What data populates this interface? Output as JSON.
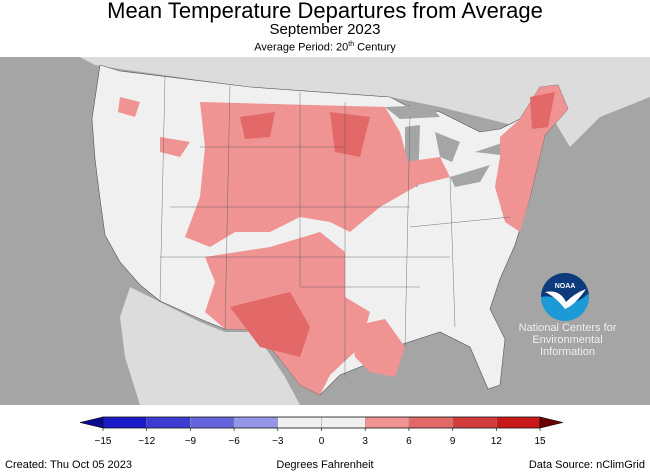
{
  "header": {
    "title": "Mean Temperature Departures from Average",
    "subtitle": "September 2023",
    "period_prefix": "Average Period: 20",
    "period_sup": "th",
    "period_suffix": " Century"
  },
  "legend": {
    "unit_label": "Degrees Fahrenheit",
    "ticks": [
      "−15",
      "−12",
      "−9",
      "−6",
      "−3",
      "0",
      "3",
      "6",
      "9",
      "12",
      "15"
    ],
    "colors": [
      "#1a1ac8",
      "#3c3cd2",
      "#6464dc",
      "#9696e8",
      "#f0f0f0",
      "#f0f0f0",
      "#ef9393",
      "#e36868",
      "#d43d3d",
      "#c81818"
    ],
    "under_color": "#0a0a90",
    "over_color": "#6a0000"
  },
  "footer": {
    "created": "Created: Thu Oct 05 2023",
    "source": "Data Source: nClimGrid"
  },
  "logo": {
    "text": "NOAA",
    "caption_lines": [
      "National Centers for",
      "Environmental",
      "Information"
    ]
  }
}
